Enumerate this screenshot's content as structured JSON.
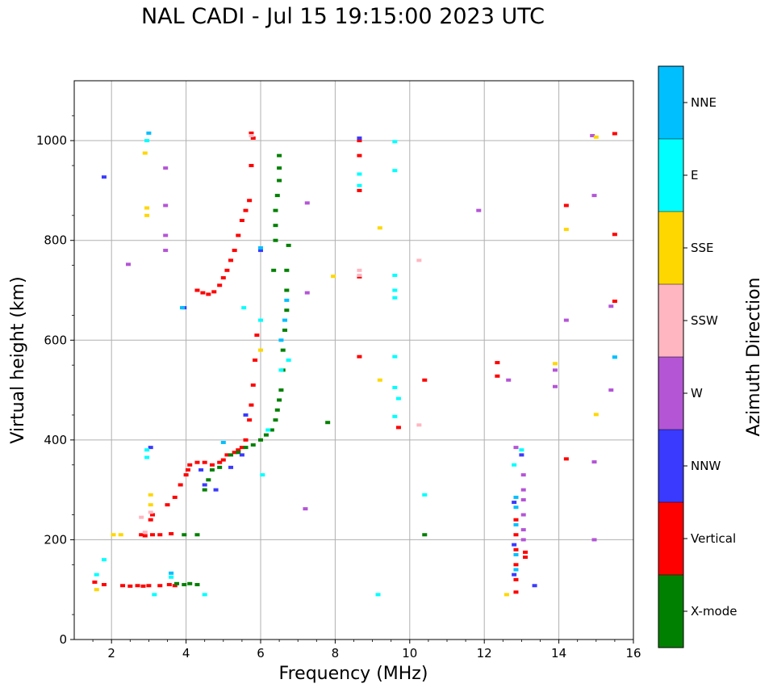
{
  "chart_data": {
    "type": "scatter",
    "title": "NAL CADI - Jul 15 19:15:00 2023 UTC",
    "xlabel": "Frequency (MHz)",
    "ylabel": "Virtual height (km)",
    "xlim": [
      1,
      16
    ],
    "ylim": [
      0,
      1120
    ],
    "xticks": [
      2,
      4,
      6,
      8,
      10,
      12,
      14,
      16
    ],
    "yticks": [
      0,
      200,
      400,
      600,
      800,
      1000
    ],
    "grid": true,
    "colorbar": {
      "label": "Azimuth Direction",
      "categories": [
        {
          "name": "X-mode",
          "color": "#008000"
        },
        {
          "name": "Vertical",
          "color": "#ff0000"
        },
        {
          "name": "NNW",
          "color": "#3a3aff"
        },
        {
          "name": "W",
          "color": "#b455d6"
        },
        {
          "name": "SSW",
          "color": "#ffb6c1"
        },
        {
          "name": "SSE",
          "color": "#ffd700"
        },
        {
          "name": "E",
          "color": "#00ffff"
        },
        {
          "name": "NNE",
          "color": "#00bfff"
        }
      ]
    },
    "series": [
      {
        "name": "Vertical",
        "points": [
          [
            1.55,
            115
          ],
          [
            1.8,
            110
          ],
          [
            2.3,
            108
          ],
          [
            2.5,
            107
          ],
          [
            2.7,
            108
          ],
          [
            2.85,
            107
          ],
          [
            3.0,
            108
          ],
          [
            3.3,
            108
          ],
          [
            3.55,
            110
          ],
          [
            3.7,
            108
          ],
          [
            2.8,
            210
          ],
          [
            2.9,
            208
          ],
          [
            3.1,
            210
          ],
          [
            3.3,
            210
          ],
          [
            3.6,
            212
          ],
          [
            3.05,
            240
          ],
          [
            3.1,
            250
          ],
          [
            3.5,
            270
          ],
          [
            3.7,
            285
          ],
          [
            3.85,
            310
          ],
          [
            4.0,
            330
          ],
          [
            4.05,
            340
          ],
          [
            4.1,
            350
          ],
          [
            4.3,
            355
          ],
          [
            4.5,
            355
          ],
          [
            4.7,
            350
          ],
          [
            4.9,
            355
          ],
          [
            5.0,
            360
          ],
          [
            5.1,
            370
          ],
          [
            5.3,
            375
          ],
          [
            5.4,
            380
          ],
          [
            5.5,
            385
          ],
          [
            5.6,
            400
          ],
          [
            5.7,
            440
          ],
          [
            5.75,
            470
          ],
          [
            5.8,
            510
          ],
          [
            5.85,
            560
          ],
          [
            5.9,
            610
          ],
          [
            4.3,
            700
          ],
          [
            4.45,
            695
          ],
          [
            4.6,
            692
          ],
          [
            4.75,
            697
          ],
          [
            4.9,
            710
          ],
          [
            5.0,
            725
          ],
          [
            5.1,
            740
          ],
          [
            5.2,
            760
          ],
          [
            5.3,
            780
          ],
          [
            5.4,
            810
          ],
          [
            5.5,
            840
          ],
          [
            5.6,
            860
          ],
          [
            5.7,
            880
          ],
          [
            5.75,
            950
          ],
          [
            5.8,
            1005
          ],
          [
            5.75,
            1015
          ],
          [
            8.65,
            1000
          ],
          [
            8.65,
            970
          ],
          [
            8.65,
            900
          ],
          [
            8.65,
            727
          ],
          [
            8.65,
            567
          ],
          [
            9.7,
            425
          ],
          [
            10.4,
            520
          ],
          [
            12.35,
            555
          ],
          [
            12.35,
            528
          ],
          [
            14.2,
            870
          ],
          [
            14.2,
            362
          ],
          [
            15.5,
            1014
          ],
          [
            15.5,
            812
          ],
          [
            15.5,
            678
          ],
          [
            12.85,
            240
          ],
          [
            12.85,
            210
          ],
          [
            12.85,
            180
          ],
          [
            12.85,
            150
          ],
          [
            12.85,
            120
          ],
          [
            12.85,
            95
          ],
          [
            13.1,
            175
          ],
          [
            13.1,
            165
          ]
        ]
      },
      {
        "name": "X-mode",
        "points": [
          [
            3.75,
            112
          ],
          [
            3.95,
            110
          ],
          [
            4.1,
            112
          ],
          [
            4.3,
            110
          ],
          [
            3.95,
            210
          ],
          [
            4.3,
            210
          ],
          [
            4.5,
            300
          ],
          [
            4.6,
            320
          ],
          [
            4.7,
            340
          ],
          [
            4.9,
            345
          ],
          [
            5.2,
            370
          ],
          [
            5.4,
            375
          ],
          [
            5.6,
            385
          ],
          [
            5.8,
            390
          ],
          [
            6.0,
            400
          ],
          [
            6.15,
            410
          ],
          [
            6.3,
            420
          ],
          [
            6.4,
            440
          ],
          [
            6.45,
            460
          ],
          [
            6.5,
            480
          ],
          [
            6.55,
            500
          ],
          [
            6.6,
            540
          ],
          [
            6.6,
            580
          ],
          [
            6.65,
            620
          ],
          [
            6.7,
            660
          ],
          [
            6.7,
            700
          ],
          [
            6.7,
            740
          ],
          [
            6.75,
            790
          ],
          [
            6.35,
            740
          ],
          [
            6.4,
            800
          ],
          [
            6.4,
            830
          ],
          [
            6.4,
            860
          ],
          [
            6.45,
            890
          ],
          [
            6.5,
            920
          ],
          [
            6.5,
            945
          ],
          [
            6.5,
            970
          ],
          [
            7.8,
            435
          ],
          [
            10.4,
            210
          ]
        ]
      },
      {
        "name": "NNW",
        "points": [
          [
            1.8,
            927
          ],
          [
            3.05,
            385
          ],
          [
            4.4,
            340
          ],
          [
            4.5,
            310
          ],
          [
            4.8,
            300
          ],
          [
            5.2,
            345
          ],
          [
            5.5,
            370
          ],
          [
            5.6,
            450
          ],
          [
            6.0,
            780
          ],
          [
            3.95,
            665
          ],
          [
            8.65,
            1005
          ],
          [
            12.8,
            275
          ],
          [
            12.8,
            190
          ],
          [
            12.8,
            130
          ],
          [
            13.0,
            370
          ],
          [
            13.35,
            108
          ]
        ]
      },
      {
        "name": "W",
        "points": [
          [
            2.45,
            752
          ],
          [
            3.45,
            945
          ],
          [
            3.45,
            870
          ],
          [
            3.45,
            810
          ],
          [
            3.45,
            780
          ],
          [
            7.25,
            875
          ],
          [
            7.25,
            695
          ],
          [
            7.2,
            262
          ],
          [
            11.85,
            860
          ],
          [
            12.65,
            520
          ],
          [
            13.9,
            540
          ],
          [
            13.9,
            507
          ],
          [
            14.2,
            640
          ],
          [
            14.9,
            1010
          ],
          [
            14.95,
            890
          ],
          [
            15.4,
            668
          ],
          [
            15.4,
            500
          ],
          [
            14.95,
            356
          ],
          [
            14.95,
            200
          ],
          [
            13.05,
            330
          ],
          [
            13.05,
            300
          ],
          [
            13.05,
            280
          ],
          [
            13.05,
            250
          ],
          [
            13.05,
            220
          ],
          [
            13.05,
            200
          ],
          [
            12.85,
            385
          ]
        ]
      },
      {
        "name": "SSW",
        "points": [
          [
            2.8,
            245
          ],
          [
            2.9,
            215
          ],
          [
            3.05,
            255
          ],
          [
            8.65,
            740
          ],
          [
            8.65,
            730
          ],
          [
            10.25,
            760
          ],
          [
            10.25,
            430
          ],
          [
            5.75,
            1010
          ]
        ]
      },
      {
        "name": "SSE",
        "points": [
          [
            1.6,
            100
          ],
          [
            2.05,
            210
          ],
          [
            2.25,
            210
          ],
          [
            2.9,
            975
          ],
          [
            2.95,
            865
          ],
          [
            2.95,
            850
          ],
          [
            3.05,
            290
          ],
          [
            3.05,
            270
          ],
          [
            7.95,
            728
          ],
          [
            9.2,
            825
          ],
          [
            9.2,
            520
          ],
          [
            12.6,
            90
          ],
          [
            13.9,
            553
          ],
          [
            14.2,
            822
          ],
          [
            15.0,
            1007
          ],
          [
            15.0,
            451
          ],
          [
            6.0,
            580
          ]
        ]
      },
      {
        "name": "E",
        "points": [
          [
            1.6,
            130
          ],
          [
            1.8,
            160
          ],
          [
            2.95,
            1000
          ],
          [
            2.95,
            380
          ],
          [
            2.95,
            365
          ],
          [
            3.15,
            90
          ],
          [
            3.6,
            125
          ],
          [
            4.5,
            90
          ],
          [
            5.55,
            665
          ],
          [
            6.0,
            640
          ],
          [
            6.05,
            330
          ],
          [
            6.2,
            420
          ],
          [
            6.55,
            540
          ],
          [
            6.75,
            560
          ],
          [
            8.65,
            933
          ],
          [
            8.65,
            910
          ],
          [
            9.15,
            90
          ],
          [
            9.6,
            998
          ],
          [
            9.6,
            940
          ],
          [
            9.6,
            730
          ],
          [
            9.6,
            700
          ],
          [
            9.6,
            685
          ],
          [
            9.6,
            567
          ],
          [
            9.6,
            505
          ],
          [
            9.7,
            483
          ],
          [
            9.6,
            447
          ],
          [
            10.4,
            290
          ],
          [
            15.5,
            566
          ],
          [
            12.8,
            350
          ],
          [
            13.0,
            380
          ]
        ]
      },
      {
        "name": "NNE",
        "points": [
          [
            3.0,
            1015
          ],
          [
            3.6,
            133
          ],
          [
            3.9,
            665
          ],
          [
            5.0,
            395
          ],
          [
            6.0,
            785
          ],
          [
            6.55,
            600
          ],
          [
            6.65,
            640
          ],
          [
            6.7,
            680
          ],
          [
            12.85,
            285
          ],
          [
            12.85,
            265
          ],
          [
            12.85,
            230
          ],
          [
            12.85,
            170
          ],
          [
            12.85,
            140
          ],
          [
            15.5,
            566
          ]
        ]
      }
    ]
  }
}
